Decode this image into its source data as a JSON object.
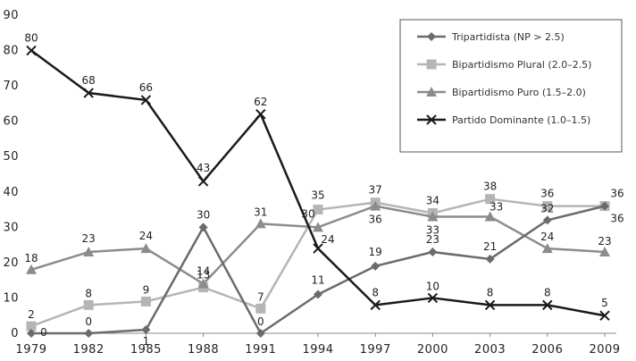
{
  "chart_data": {
    "type": "line",
    "title": "",
    "xlabel": "",
    "ylabel": "",
    "x": [
      "1979",
      "1982",
      "1985",
      "1988",
      "1991",
      "1994",
      "1997",
      "2000",
      "2003",
      "2006",
      "2009"
    ],
    "ylim": [
      0,
      90
    ],
    "yticks": [
      0,
      10,
      20,
      30,
      40,
      50,
      60,
      70,
      80,
      90
    ],
    "grid": false,
    "legend_position": "top-right",
    "series": [
      {
        "name": "Tripartidista (NP > 2.5)",
        "marker": "diamond",
        "color": "#6b6b6b",
        "values": [
          0,
          0,
          1,
          30,
          0,
          11,
          19,
          23,
          21,
          32,
          36
        ]
      },
      {
        "name": "Bipartidismo Plural (2.0–2.5)",
        "marker": "square",
        "color": "#b5b5b5",
        "values": [
          2,
          8,
          9,
          13,
          7,
          35,
          37,
          34,
          38,
          36,
          36
        ]
      },
      {
        "name": "Bipartidismo Puro (1.5–2.0)",
        "marker": "triangle",
        "color": "#8c8c8c",
        "values": [
          18,
          23,
          24,
          14,
          31,
          30,
          36,
          33,
          33,
          24,
          23
        ]
      },
      {
        "name": "Partido Dominante (1.0–1.5)",
        "marker": "x",
        "color": "#1a1a1a",
        "values": [
          80,
          68,
          66,
          43,
          62,
          24,
          8,
          10,
          8,
          8,
          5
        ]
      }
    ]
  }
}
